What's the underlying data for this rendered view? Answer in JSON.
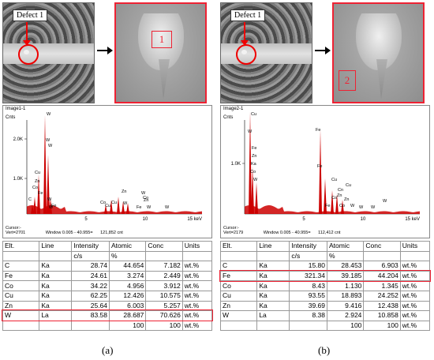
{
  "panels": [
    {
      "id": "a",
      "caption": "(a)",
      "defect_label": "Defect 1",
      "marker_label": "1",
      "spectrum": {
        "header": "Image1-1",
        "y_label": "Cnts",
        "y_ticks": [
          "2.0K",
          "1.0K"
        ],
        "x_unit": "15 keV",
        "x_ticks": [
          "5",
          "10"
        ],
        "cursor": "Cursor:-",
        "vert": "Vert=2701",
        "window": "Window 0.005 - 40.955=",
        "window_value": "121,852 cnt",
        "peak_labels": [
          "W",
          "W",
          "W",
          "Cu",
          "Zn",
          "Co",
          "Fe",
          "C",
          "W",
          "W",
          "Fe",
          "Co",
          "Cu",
          "Cu",
          "Zn",
          "W",
          "W",
          "Co",
          "Fe",
          "Zn",
          "W",
          "W"
        ]
      },
      "table": {
        "headers": [
          "Elt.",
          "Line",
          "Intensity",
          "Atomic",
          "Conc",
          "Units"
        ],
        "subheaders": [
          "",
          "",
          "c/s",
          "%",
          "",
          ""
        ],
        "rows": [
          [
            "C",
            "Ka",
            "28.74",
            "44.654",
            "7.182",
            "wt.%"
          ],
          [
            "Fe",
            "Ka",
            "24.61",
            "3.274",
            "2.449",
            "wt.%"
          ],
          [
            "Co",
            "Ka",
            "34.22",
            "4.956",
            "3.912",
            "wt.%"
          ],
          [
            "Cu",
            "Ka",
            "62.25",
            "12.426",
            "10.575",
            "wt.%"
          ],
          [
            "Zn",
            "Ka",
            "25.64",
            "6.003",
            "5.257",
            "wt.%"
          ],
          [
            "W",
            "La",
            "83.58",
            "28.687",
            "70.626",
            "wt.%"
          ]
        ],
        "total": [
          "",
          "",
          "",
          "100",
          "100",
          "wt.%"
        ],
        "highlight_row": 5
      }
    },
    {
      "id": "b",
      "caption": "(b)",
      "defect_label": "Defect 1",
      "marker_label": "2",
      "spectrum": {
        "header": "Image2-1",
        "y_label": "Cnts",
        "y_ticks": [
          "1.0K"
        ],
        "x_unit": "15 keV",
        "x_ticks": [
          "5",
          "10"
        ],
        "cursor": "Cursor:-",
        "vert": "Vert=2179",
        "window": "Window 0.005 - 40.955=",
        "window_value": "112,412 cnt",
        "peak_labels": [
          "Cu",
          "W",
          "Fe",
          "Zn",
          "Ka",
          "Co",
          "W",
          "Fe",
          "Fe",
          "Cu",
          "Fe",
          "Co",
          "Cn",
          "Zn",
          "Co",
          "Cu",
          "Zn",
          "W",
          "W",
          "W",
          "W"
        ]
      },
      "table": {
        "headers": [
          "Elt.",
          "Line",
          "Intensity",
          "Atomic",
          "Conc",
          "Units"
        ],
        "subheaders": [
          "",
          "",
          "c/s",
          "%",
          "",
          ""
        ],
        "rows": [
          [
            "C",
            "Ka",
            "15.80",
            "28.453",
            "6.903",
            "wt.%"
          ],
          [
            "Fe",
            "Ka",
            "321.34",
            "39.185",
            "44.204",
            "wt.%"
          ],
          [
            "Co",
            "Ka",
            "8.43",
            "1.130",
            "1.345",
            "wt.%"
          ],
          [
            "Cu",
            "Ka",
            "93.55",
            "18.893",
            "24.252",
            "wt.%"
          ],
          [
            "Zn",
            "Ka",
            "39.69",
            "9.416",
            "12.438",
            "wt.%"
          ],
          [
            "W",
            "La",
            "8.38",
            "2.924",
            "10.858",
            "wt.%"
          ]
        ],
        "total": [
          "",
          "",
          "",
          "100",
          "100",
          "wt.%"
        ],
        "highlight_row": 1
      }
    }
  ],
  "colors": {
    "highlight": "#e22233",
    "spectrum": "#cc0000"
  }
}
